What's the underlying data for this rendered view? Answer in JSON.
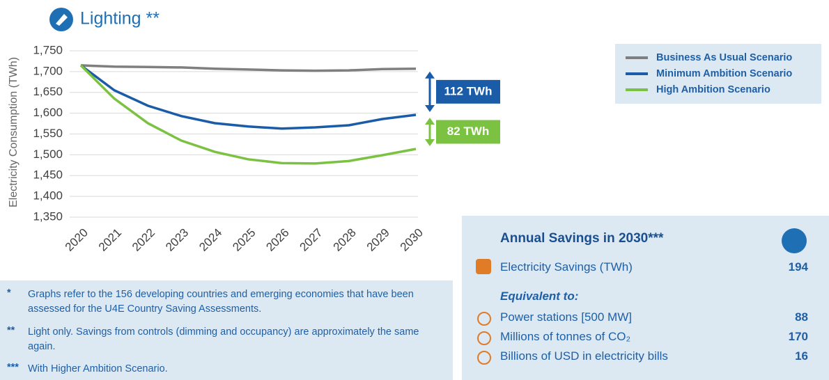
{
  "chart_data": {
    "type": "line",
    "title": "Lighting **",
    "y_label": "Electricity Consumption (TWh)",
    "categories": [
      "2020",
      "2021",
      "2022",
      "2023",
      "2024",
      "2025",
      "2026",
      "2027",
      "2028",
      "2029",
      "2030"
    ],
    "series": [
      {
        "name": "Business As Usual Scenario",
        "color": "#7f7f7f",
        "values": [
          1715,
          1712,
          1711,
          1710,
          1707,
          1705,
          1703,
          1702,
          1703,
          1706,
          1707
        ]
      },
      {
        "name": "Minimum Ambition Scenario",
        "color": "#1b5ca8",
        "values": [
          1715,
          1655,
          1618,
          1593,
          1576,
          1568,
          1563,
          1566,
          1571,
          1586,
          1596
        ]
      },
      {
        "name": "High Ambition Scenario",
        "color": "#7cc242",
        "values": [
          1715,
          1635,
          1576,
          1534,
          1507,
          1489,
          1480,
          1479,
          1485,
          1499,
          1514
        ]
      }
    ],
    "ylim": [
      1350,
      1750
    ],
    "yticks": [
      {
        "value": 1350,
        "label": "1,350"
      },
      {
        "value": 1400,
        "label": "1,400"
      },
      {
        "value": 1450,
        "label": "1,450"
      },
      {
        "value": 1500,
        "label": "1,500"
      },
      {
        "value": 1550,
        "label": "1,550"
      },
      {
        "value": 1600,
        "label": "1,600"
      },
      {
        "value": 1650,
        "label": "1,650"
      },
      {
        "value": 1700,
        "label": "1,700"
      },
      {
        "value": 1750,
        "label": "1,750"
      }
    ],
    "grid": true,
    "legend": "top-right",
    "annotations": [
      "112 TWh",
      "82 TWh"
    ]
  },
  "notes": [
    {
      "marker": "*",
      "text": "Graphs refer to the 156 developing countries and emerging economies that have been assessed for the U4E Country Saving Assessments."
    },
    {
      "marker": "**",
      "text": "Light only. Savings from controls (dimming and occupancy) are approximately the same again."
    },
    {
      "marker": "***",
      "text": "With Higher Ambition Scenario."
    }
  ],
  "savings": {
    "title": "Annual Savings in 2030***",
    "main": {
      "label": "Electricity Savings (TWh)",
      "value": 194
    },
    "equivalent_heading": "Equivalent to:",
    "equivalents": [
      {
        "label": "Power stations [500 MW]",
        "value": 88
      },
      {
        "label": "Millions of tonnes of CO₂",
        "value": 170
      },
      {
        "label": "Billions of USD in electricity bills",
        "value": 16
      }
    ]
  }
}
